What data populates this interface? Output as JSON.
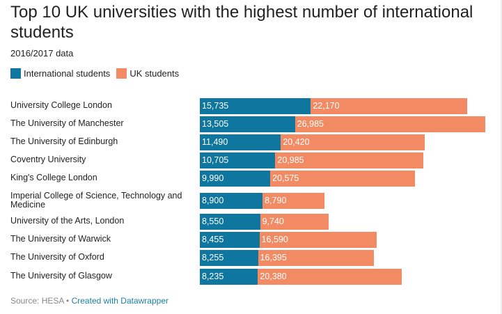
{
  "title": "Top 10 UK universities with the highest number of international students",
  "subtitle": "2016/2017 data",
  "colors": {
    "international": "#0f76a0",
    "uk": "#f28b64"
  },
  "legend": [
    {
      "label": "International students",
      "color": "#0f76a0"
    },
    {
      "label": "UK students",
      "color": "#f28b64"
    }
  ],
  "footer": {
    "source": "Source: HESA",
    "separator": " • ",
    "credit": "Created with Datawrapper"
  },
  "chart_data": {
    "type": "bar",
    "orientation": "horizontal",
    "stacked": true,
    "categories": [
      "University College London",
      "The University of Manchester",
      "The University of Edinburgh",
      "Coventry University",
      "King's College London",
      "Imperial College of Science, Technology and Medicine",
      "University of the Arts, London",
      "The University of Warwick",
      "The University of Oxford",
      "The University of Glasgow"
    ],
    "series": [
      {
        "name": "International students",
        "values": [
          15735,
          13505,
          11490,
          10705,
          9990,
          8900,
          8550,
          8455,
          8255,
          8235
        ],
        "labels": [
          "15,735",
          "13,505",
          "11,490",
          "10,705",
          "9,990",
          "8,900",
          "8,550",
          "8,455",
          "8,255",
          "8,235"
        ]
      },
      {
        "name": "UK students",
        "values": [
          22170,
          26985,
          20420,
          20985,
          20575,
          8790,
          9740,
          16590,
          16395,
          20380
        ],
        "labels": [
          "22,170",
          "26,985",
          "20,420",
          "20,985",
          "20,575",
          "8,790",
          "9,740",
          "16,590",
          "16,395",
          "20,380"
        ]
      }
    ],
    "xlim": [
      0,
      40490
    ]
  }
}
